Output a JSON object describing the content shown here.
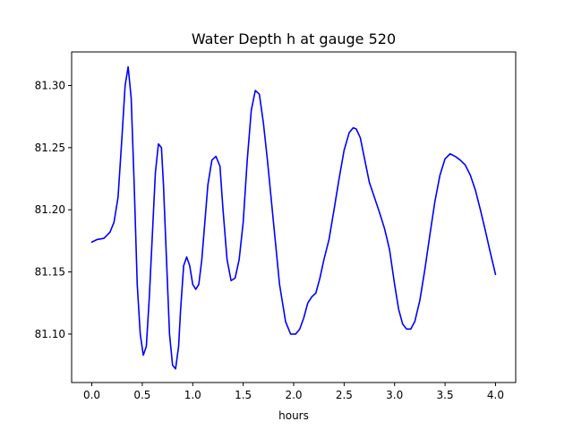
{
  "chart_data": {
    "type": "line",
    "title": "Water Depth h at gauge 520",
    "xlabel": "hours",
    "ylabel": "",
    "xlim": [
      -0.2,
      4.2
    ],
    "ylim": [
      81.061,
      81.327
    ],
    "xticks": [
      0.0,
      0.5,
      1.0,
      1.5,
      2.0,
      2.5,
      3.0,
      3.5,
      4.0
    ],
    "xtick_labels": [
      "0.0",
      "0.5",
      "1.0",
      "1.5",
      "2.0",
      "2.5",
      "3.0",
      "3.5",
      "4.0"
    ],
    "yticks": [
      81.1,
      81.15,
      81.2,
      81.25,
      81.3
    ],
    "ytick_labels": [
      "81.10",
      "81.15",
      "81.20",
      "81.25",
      "81.30"
    ],
    "grid": false,
    "series": [
      {
        "color": "#0000ff",
        "x": [
          0.0,
          0.05,
          0.12,
          0.18,
          0.22,
          0.26,
          0.3,
          0.33,
          0.36,
          0.39,
          0.42,
          0.45,
          0.48,
          0.51,
          0.54,
          0.57,
          0.6,
          0.63,
          0.66,
          0.69,
          0.71,
          0.74,
          0.77,
          0.8,
          0.83,
          0.86,
          0.88,
          0.91,
          0.94,
          0.97,
          1.0,
          1.03,
          1.06,
          1.09,
          1.12,
          1.15,
          1.19,
          1.23,
          1.27,
          1.3,
          1.34,
          1.38,
          1.42,
          1.46,
          1.5,
          1.54,
          1.58,
          1.62,
          1.66,
          1.7,
          1.74,
          1.8,
          1.86,
          1.92,
          1.97,
          2.02,
          2.06,
          2.1,
          2.14,
          2.18,
          2.22,
          2.26,
          2.3,
          2.35,
          2.4,
          2.45,
          2.5,
          2.55,
          2.59,
          2.62,
          2.66,
          2.7,
          2.75,
          2.8,
          2.85,
          2.9,
          2.95,
          3.0,
          3.04,
          3.08,
          3.12,
          3.16,
          3.2,
          3.25,
          3.3,
          3.35,
          3.4,
          3.45,
          3.5,
          3.55,
          3.6,
          3.65,
          3.7,
          3.75,
          3.8,
          3.85,
          3.9,
          3.95,
          4.0
        ],
        "y": [
          81.174,
          81.176,
          81.177,
          81.182,
          81.19,
          81.21,
          81.26,
          81.3,
          81.315,
          81.29,
          81.22,
          81.14,
          81.1,
          81.083,
          81.09,
          81.13,
          81.18,
          81.23,
          81.253,
          81.25,
          81.22,
          81.16,
          81.1,
          81.075,
          81.072,
          81.09,
          81.12,
          81.155,
          81.162,
          81.155,
          81.14,
          81.136,
          81.14,
          81.16,
          81.19,
          81.22,
          81.24,
          81.243,
          81.235,
          81.2,
          81.16,
          81.143,
          81.145,
          81.16,
          81.19,
          81.24,
          81.28,
          81.296,
          81.293,
          81.27,
          81.24,
          81.19,
          81.14,
          81.11,
          81.1,
          81.1,
          81.104,
          81.113,
          81.125,
          81.13,
          81.133,
          81.145,
          81.16,
          81.176,
          81.2,
          81.225,
          81.248,
          81.262,
          81.266,
          81.265,
          81.258,
          81.242,
          81.222,
          81.21,
          81.198,
          81.185,
          81.168,
          81.14,
          81.12,
          81.108,
          81.104,
          81.104,
          81.11,
          81.127,
          81.152,
          81.18,
          81.207,
          81.228,
          81.241,
          81.245,
          81.243,
          81.24,
          81.236,
          81.228,
          81.216,
          81.2,
          81.183,
          81.165,
          81.148
        ]
      }
    ]
  }
}
